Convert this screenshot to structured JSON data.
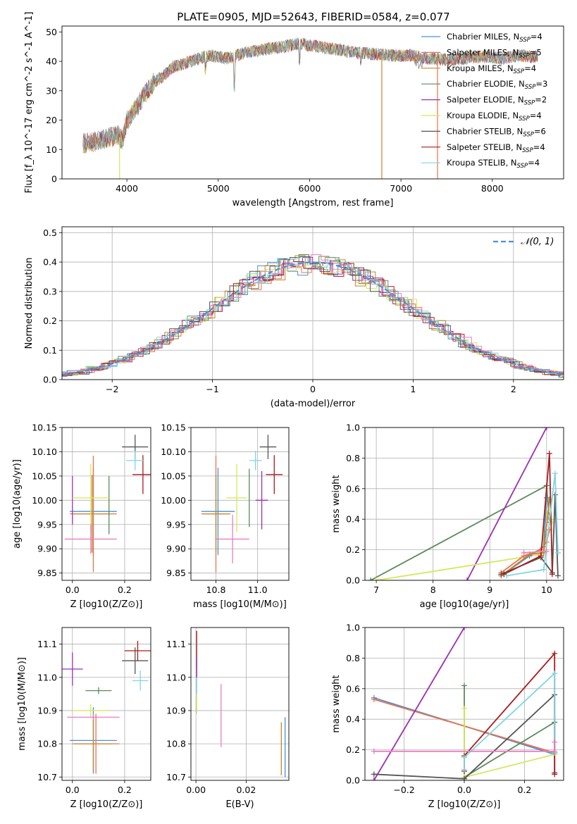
{
  "figure": {
    "title": "PLATE=0905, MJD=52643, FIBERID=0584, z=0.077"
  },
  "palette": {
    "Chabrier MILES": "#4a90d9",
    "Salpeter MILES": "#e8734a",
    "Kroupa MILES": "#c8862a",
    "Chabrier ELODIE": "#5b8a5b",
    "Salpeter ELODIE": "#9b30b0",
    "Kroupa ELODIE": "#d4e85a",
    "Chabrier STELIB": "#555555",
    "Salpeter STELIB": "#aa1c1c",
    "Kroupa STELIB": "#7fd6e0",
    "Extra": "#e87fbf"
  },
  "chart_data": [
    {
      "id": "spectrum",
      "type": "line",
      "title": "PLATE=0905, MJD=52643, FIBERID=0584, z=0.077",
      "xlabel": "wavelength [Angstrom, rest frame]",
      "ylabel": "Flux [f_λ 10^-17 erg cm^-2 s^-1 A^-1]",
      "xlim": [
        3290,
        8780
      ],
      "ylim": [
        0,
        52
      ],
      "xticks": [
        4000,
        5000,
        6000,
        7000,
        8000
      ],
      "yticks": [
        0,
        10,
        20,
        30,
        40,
        50
      ],
      "grid": false,
      "legend_position": "top-right",
      "continuum": {
        "x": [
          3520,
          3700,
          3900,
          3950,
          4000,
          4100,
          4200,
          4300,
          4400,
          4500,
          4700,
          4900,
          5100,
          5300,
          5500,
          5700,
          5900,
          6100,
          6300,
          6500,
          6700,
          6900,
          7100,
          7300,
          7500,
          7700,
          7900,
          8100,
          8300,
          8500
        ],
        "y": [
          12,
          13,
          15,
          13,
          20,
          24,
          29,
          33,
          35,
          38,
          40,
          42,
          41,
          43,
          44,
          45,
          46,
          45,
          44,
          43,
          42.5,
          42,
          42,
          41,
          40.5,
          41,
          41.5,
          41,
          42,
          41.5
        ]
      },
      "series": [
        {
          "name": "Chabrier MILES, N_SSP=4",
          "color_key": "Chabrier MILES"
        },
        {
          "name": "Salpeter MILES, N_SSP=5",
          "color_key": "Salpeter MILES"
        },
        {
          "name": "Kroupa MILES, N_SSP=4",
          "color_key": "Kroupa MILES"
        },
        {
          "name": "Chabrier ELODIE, N_SSP=3",
          "color_key": "Chabrier ELODIE"
        },
        {
          "name": "Salpeter ELODIE, N_SSP=2",
          "color_key": "Salpeter ELODIE"
        },
        {
          "name": "Kroupa ELODIE, N_SSP=4",
          "color_key": "Kroupa ELODIE"
        },
        {
          "name": "Chabrier STELIB, N_SSP=6",
          "color_key": "Chabrier STELIB"
        },
        {
          "name": "Salpeter STELIB, N_SSP=4",
          "color_key": "Salpeter STELIB"
        },
        {
          "name": "Kroupa STELIB, N_SSP=4",
          "color_key": "Kroupa STELIB"
        }
      ],
      "dropouts": [
        {
          "x": 3920,
          "color_key": "Kroupa ELODIE"
        },
        {
          "x": 6790,
          "color_key": "Kroupa MILES"
        },
        {
          "x": 7400,
          "color_key": "Salpeter MILES"
        }
      ]
    },
    {
      "id": "residuals",
      "type": "area",
      "xlabel": "(data-model)/error",
      "ylabel": "Normed distribution",
      "xlim": [
        -2.5,
        2.5
      ],
      "ylim": [
        0,
        0.52
      ],
      "xticks": [
        -2,
        -1,
        0,
        1,
        2
      ],
      "yticks": [
        0.0,
        0.1,
        0.2,
        0.3,
        0.4,
        0.5
      ],
      "grid": true,
      "legend_position": "top-right",
      "reference": {
        "name": "𝒩(0, 1)",
        "mean": 0,
        "sigma": 1,
        "color": "#4a90d9"
      }
    },
    {
      "id": "age-vs-Z",
      "type": "scatter",
      "xlabel": "Z [log10(Z/Z⊙)]",
      "ylabel": "age  [log10(age/yr)]",
      "xlim": [
        -0.04,
        0.3
      ],
      "ylim": [
        9.835,
        10.15
      ],
      "xticks": [
        0.0,
        0.2
      ],
      "yticks": [
        9.85,
        9.9,
        9.95,
        10.0,
        10.05,
        10.1,
        10.15
      ],
      "grid": true,
      "points": [
        {
          "ck": "Chabrier MILES",
          "x": 0.08,
          "y": 9.977,
          "xe": 0.09,
          "ye": 0.09
        },
        {
          "ck": "Salpeter MILES",
          "x": 0.08,
          "y": 9.972,
          "xe": 0.09,
          "ye": 0.12
        },
        {
          "ck": "Kroupa MILES",
          "x": 0.075,
          "y": 9.972,
          "xe": 0.07,
          "ye": 0.08
        },
        {
          "ck": "Chabrier ELODIE",
          "x": 0.14,
          "y": 9.99,
          "xe": 0.0,
          "ye": 0.06
        },
        {
          "ck": "Salpeter ELODIE",
          "x": 0.0,
          "y": 10.0,
          "xe": 0.0,
          "ye": 0.05
        },
        {
          "ck": "Kroupa ELODIE",
          "x": 0.07,
          "y": 10.005,
          "xe": 0.07,
          "ye": 0.07
        },
        {
          "ck": "Chabrier STELIB",
          "x": 0.24,
          "y": 10.11,
          "xe": 0.05,
          "ye": 0.025
        },
        {
          "ck": "Salpeter STELIB",
          "x": 0.27,
          "y": 10.053,
          "xe": 0.04,
          "ye": 0.04
        },
        {
          "ck": "Kroupa STELIB",
          "x": 0.24,
          "y": 10.082,
          "xe": 0.035,
          "ye": 0.02
        },
        {
          "ck": "Extra",
          "x": 0.07,
          "y": 9.92,
          "xe": 0.1,
          "ye": 0.03
        }
      ]
    },
    {
      "id": "age-vs-mass",
      "type": "scatter",
      "xlabel": "mass [log10(M/M⊙)]",
      "ylabel": "",
      "xlim": [
        10.68,
        11.15
      ],
      "ylim": [
        9.835,
        10.15
      ],
      "xticks": [
        10.8,
        11.0
      ],
      "yticks": [
        9.85,
        9.9,
        9.95,
        10.0,
        10.05,
        10.1,
        10.15
      ],
      "grid": true,
      "points": [
        {
          "ck": "Chabrier MILES",
          "x": 10.81,
          "y": 9.977,
          "xe": 0.08,
          "ye": 0.09
        },
        {
          "ck": "Salpeter MILES",
          "x": 10.8,
          "y": 9.972,
          "xe": 0.07,
          "ye": 0.12
        },
        {
          "ck": "Kroupa MILES",
          "x": 10.8,
          "y": 9.972,
          "xe": 0.06,
          "ye": 0.08
        },
        {
          "ck": "Chabrier ELODIE",
          "x": 10.96,
          "y": 10.005,
          "xe": 0.0,
          "ye": 0.06
        },
        {
          "ck": "Salpeter ELODIE",
          "x": 11.02,
          "y": 10.0,
          "xe": 0.03,
          "ye": 0.06
        },
        {
          "ck": "Kroupa ELODIE",
          "x": 10.9,
          "y": 10.005,
          "xe": 0.05,
          "ye": 0.07
        },
        {
          "ck": "Chabrier STELIB",
          "x": 11.05,
          "y": 10.11,
          "xe": 0.04,
          "ye": 0.025
        },
        {
          "ck": "Salpeter STELIB",
          "x": 11.08,
          "y": 10.053,
          "xe": 0.04,
          "ye": 0.04
        },
        {
          "ck": "Kroupa STELIB",
          "x": 10.99,
          "y": 10.082,
          "xe": 0.03,
          "ye": 0.02
        },
        {
          "ck": "Extra",
          "x": 10.88,
          "y": 9.92,
          "xe": 0.08,
          "ye": 0.05
        }
      ]
    },
    {
      "id": "weight-vs-age",
      "type": "line",
      "xlabel": "age  [log10(age/yr)]",
      "ylabel": "mass weight",
      "xlim": [
        6.8,
        10.3
      ],
      "ylim": [
        0,
        1.0
      ],
      "xticks": [
        7,
        8,
        9,
        10
      ],
      "yticks": [
        0.0,
        0.2,
        0.4,
        0.6,
        0.8,
        1.0
      ],
      "grid": true,
      "series": [
        {
          "ck": "Chabrier ELODIE",
          "x": [
            6.9,
            10.0,
            10.05
          ],
          "y": [
            0.0,
            0.62,
            0.38
          ]
        },
        {
          "ck": "Salpeter ELODIE",
          "x": [
            8.6,
            10.0
          ],
          "y": [
            0.0,
            1.0
          ]
        },
        {
          "ck": "Kroupa ELODIE",
          "x": [
            7.0,
            9.9,
            10.0,
            10.1
          ],
          "y": [
            0.0,
            0.17,
            0.45,
            0.38
          ]
        },
        {
          "ck": "Chabrier MILES",
          "x": [
            9.2,
            9.7,
            9.95,
            10.0
          ],
          "y": [
            0.03,
            0.16,
            0.22,
            0.54
          ]
        },
        {
          "ck": "Salpeter MILES",
          "x": [
            9.2,
            9.6,
            9.9,
            10.0,
            10.05
          ],
          "y": [
            0.05,
            0.16,
            0.2,
            0.25,
            0.33
          ]
        },
        {
          "ck": "Kroupa MILES",
          "x": [
            9.2,
            9.7,
            9.95,
            10.05
          ],
          "y": [
            0.03,
            0.17,
            0.18,
            0.53
          ]
        },
        {
          "ck": "Chabrier STELIB",
          "x": [
            9.2,
            9.9,
            10.1,
            10.15,
            10.2
          ],
          "y": [
            0.04,
            0.15,
            0.05,
            0.56,
            0.03
          ]
        },
        {
          "ck": "Salpeter STELIB",
          "x": [
            9.25,
            9.9,
            10.05,
            10.1
          ],
          "y": [
            0.04,
            0.16,
            0.83,
            0.04
          ]
        },
        {
          "ck": "Kroupa STELIB",
          "x": [
            9.3,
            9.95,
            10.15,
            10.2
          ],
          "y": [
            0.03,
            0.07,
            0.7,
            0.18
          ]
        },
        {
          "ck": "Extra",
          "x": [
            9.6,
            10.0
          ],
          "y": [
            0.18,
            0.19
          ]
        }
      ]
    },
    {
      "id": "mass-vs-Z",
      "type": "scatter",
      "xlabel": "Z [log10(Z/Z⊙)]",
      "ylabel": "mass [log10(M/M⊙)]",
      "xlim": [
        -0.04,
        0.3
      ],
      "ylim": [
        10.69,
        11.15
      ],
      "xticks": [
        0.0,
        0.2
      ],
      "yticks": [
        10.7,
        10.8,
        10.9,
        11.0,
        11.1
      ],
      "grid": true,
      "points": [
        {
          "ck": "Chabrier MILES",
          "x": 0.08,
          "y": 10.81,
          "xe": 0.09,
          "ye": 0.1
        },
        {
          "ck": "Salpeter MILES",
          "x": 0.09,
          "y": 10.8,
          "xe": 0.09,
          "ye": 0.09
        },
        {
          "ck": "Kroupa MILES",
          "x": 0.08,
          "y": 10.8,
          "xe": 0.07,
          "ye": 0.08
        },
        {
          "ck": "Chabrier ELODIE",
          "x": 0.1,
          "y": 10.96,
          "xe": 0.05,
          "ye": 0.01
        },
        {
          "ck": "Salpeter ELODIE",
          "x": 0.0,
          "y": 11.025,
          "xe": 0.04,
          "ye": 0.05
        },
        {
          "ck": "Kroupa ELODIE",
          "x": 0.07,
          "y": 10.9,
          "xe": 0.07,
          "ye": 0.02
        },
        {
          "ck": "Chabrier STELIB",
          "x": 0.24,
          "y": 11.05,
          "xe": 0.05,
          "ye": 0.04
        },
        {
          "ck": "Salpeter STELIB",
          "x": 0.25,
          "y": 11.08,
          "xe": 0.05,
          "ye": 0.03
        },
        {
          "ck": "Kroupa STELIB",
          "x": 0.26,
          "y": 10.99,
          "xe": 0.03,
          "ye": 0.03
        },
        {
          "ck": "Extra",
          "x": 0.08,
          "y": 10.88,
          "xe": 0.1,
          "ye": 0.01
        }
      ]
    },
    {
      "id": "mass-vs-ebv",
      "type": "scatter",
      "xlabel": "E(B-V)",
      "ylabel": "",
      "xlim": [
        -0.002,
        0.037
      ],
      "ylim": [
        10.69,
        11.15
      ],
      "xticks": [
        0.0,
        0.02
      ],
      "yticks": [
        10.7,
        10.8,
        10.9,
        11.0,
        11.1
      ],
      "grid": true,
      "points": [
        {
          "ck": "Chabrier MILES",
          "x": 0.0355,
          "y": 10.79,
          "xe": 0,
          "ye": 0.09
        },
        {
          "ck": "Kroupa MILES",
          "x": 0.034,
          "y": 10.785,
          "xe": 0,
          "ye": 0.08
        },
        {
          "ck": "Extra",
          "x": 0.01,
          "y": 10.885,
          "xe": 0,
          "ye": 0.095
        },
        {
          "ck": "Salpeter STELIB",
          "x": 0.0003,
          "y": 11.07,
          "xe": 0,
          "ye": 0.07
        },
        {
          "ck": "Kroupa STELIB",
          "x": 0.0003,
          "y": 10.99,
          "xe": 0,
          "ye": 0.04
        },
        {
          "ck": "Kroupa ELODIE",
          "x": 0.0003,
          "y": 10.92,
          "xe": 0,
          "ye": 0.03
        },
        {
          "ck": "Salpeter ELODIE",
          "x": 0.0003,
          "y": 11.03,
          "xe": 0,
          "ye": 0.03
        }
      ]
    },
    {
      "id": "weight-vs-Z",
      "type": "line",
      "xlabel": "Z [log10(Z/Z⊙)]",
      "ylabel": "mass weight",
      "xlim": [
        -0.33,
        0.33
      ],
      "ylim": [
        0,
        1.0
      ],
      "xticks": [
        -0.2,
        0.0,
        0.2
      ],
      "yticks": [
        0.0,
        0.2,
        0.4,
        0.6,
        0.8,
        1.0
      ],
      "grid": true,
      "series": [
        {
          "ck": "Chabrier MILES",
          "x": [
            -0.3,
            0.3
          ],
          "y": [
            0.54,
            0.17
          ]
        },
        {
          "ck": "Salpeter MILES",
          "x": [
            -0.3,
            0.3
          ],
          "y": [
            0.53,
            0.18
          ]
        },
        {
          "ck": "Salpeter ELODIE",
          "x": [
            -0.3,
            0.0
          ],
          "y": [
            0.0,
            1.0
          ]
        },
        {
          "ck": "Chabrier ELODIE",
          "x": [
            0.0,
            0.0,
            0.3,
            0.3
          ],
          "y": [
            0.62,
            0.02,
            0.38,
            0.18
          ]
        },
        {
          "ck": "Kroupa ELODIE",
          "x": [
            0.0,
            0.0,
            0.3
          ],
          "y": [
            0.47,
            0.02,
            0.17
          ]
        },
        {
          "ck": "Chabrier STELIB",
          "x": [
            -0.3,
            0.0,
            0.3,
            0.3
          ],
          "y": [
            0.04,
            0.01,
            0.56,
            0.05
          ]
        },
        {
          "ck": "Salpeter STELIB",
          "x": [
            0.0,
            0.0,
            0.3,
            0.3
          ],
          "y": [
            0.06,
            0.16,
            0.83,
            0.04
          ]
        },
        {
          "ck": "Kroupa STELIB",
          "x": [
            0.0,
            0.0,
            0.3,
            0.3
          ],
          "y": [
            0.07,
            0.15,
            0.7,
            0.18
          ]
        },
        {
          "ck": "Extra",
          "x": [
            -0.3,
            0.3,
            0.3
          ],
          "y": [
            0.19,
            0.19,
            0.25
          ]
        }
      ]
    }
  ]
}
